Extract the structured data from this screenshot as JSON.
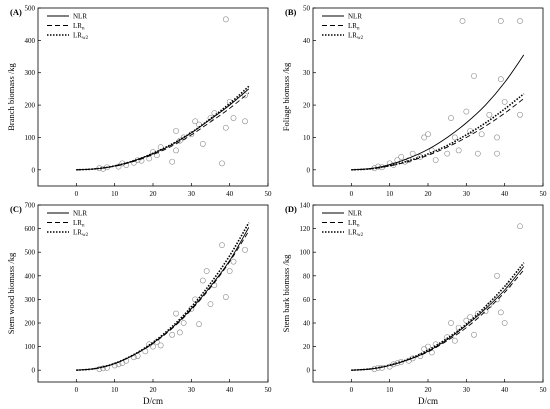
{
  "figure": {
    "xlabel": "D/cm"
  },
  "chart_data": [
    {
      "type": "scatter",
      "panel_label": "(A)",
      "ylabel": "Branch biomass /kg",
      "xlim": [
        -10,
        50
      ],
      "ylim": [
        -50,
        500
      ],
      "xticks": [
        0,
        10,
        20,
        30,
        40,
        50
      ],
      "yticks": [
        0,
        100,
        200,
        300,
        400,
        500
      ],
      "legend": [
        "NLR",
        "LR",
        "LR"
      ],
      "series": [
        {
          "name": "NLR",
          "style": "solid",
          "x": [
            0,
            5,
            10,
            15,
            20,
            25,
            30,
            35,
            40,
            45
          ],
          "y": [
            0,
            3,
            12,
            28,
            50,
            78,
            114,
            156,
            200,
            250
          ]
        },
        {
          "name": "LR",
          "style": "dashed",
          "x": [
            0,
            5,
            10,
            15,
            20,
            25,
            30,
            35,
            40,
            45
          ],
          "y": [
            0,
            3,
            11,
            26,
            47,
            74,
            108,
            148,
            190,
            238
          ]
        },
        {
          "name": "LR",
          "style": "dotted",
          "x": [
            0,
            5,
            10,
            15,
            20,
            25,
            30,
            35,
            40,
            45
          ],
          "y": [
            0,
            3,
            12,
            28,
            51,
            80,
            115,
            158,
            205,
            258
          ]
        }
      ],
      "points": [
        [
          6,
          5
        ],
        [
          7,
          3
        ],
        [
          8,
          8
        ],
        [
          11,
          10
        ],
        [
          12,
          20
        ],
        [
          13,
          15
        ],
        [
          15,
          22
        ],
        [
          16,
          30
        ],
        [
          17,
          28
        ],
        [
          19,
          35
        ],
        [
          20,
          55
        ],
        [
          21,
          45
        ],
        [
          22,
          70
        ],
        [
          25,
          25
        ],
        [
          26,
          60
        ],
        [
          26,
          120
        ],
        [
          27,
          90
        ],
        [
          28,
          100
        ],
        [
          30,
          110
        ],
        [
          31,
          150
        ],
        [
          32,
          140
        ],
        [
          33,
          80
        ],
        [
          35,
          160
        ],
        [
          36,
          175
        ],
        [
          38,
          20
        ],
        [
          39,
          130
        ],
        [
          39,
          465
        ],
        [
          40,
          210
        ],
        [
          41,
          160
        ],
        [
          44,
          230
        ],
        [
          44,
          150
        ]
      ]
    },
    {
      "type": "scatter",
      "panel_label": "(B)",
      "ylabel": "Foliage biomass /kg",
      "xlim": [
        -10,
        50
      ],
      "ylim": [
        -5,
        50
      ],
      "xticks": [
        0,
        10,
        20,
        30,
        40,
        50
      ],
      "yticks": [
        0,
        10,
        20,
        30,
        40,
        50
      ],
      "legend": [
        "NLR",
        "LR",
        "LR"
      ],
      "series": [
        {
          "name": "NLR",
          "style": "solid",
          "x": [
            0,
            5,
            10,
            15,
            20,
            25,
            30,
            35,
            40,
            45
          ],
          "y": [
            0,
            0.4,
            1.6,
            3.6,
            6.3,
            10,
            14.5,
            20,
            27,
            35.5
          ]
        },
        {
          "name": "LR",
          "style": "dashed",
          "x": [
            0,
            5,
            10,
            15,
            20,
            25,
            30,
            35,
            40,
            45
          ],
          "y": [
            0,
            0.3,
            1.2,
            2.6,
            4.5,
            7,
            10,
            13.5,
            17.5,
            22
          ]
        },
        {
          "name": "LR",
          "style": "dotted",
          "x": [
            0,
            5,
            10,
            15,
            20,
            25,
            30,
            35,
            40,
            45
          ],
          "y": [
            0,
            0.3,
            1.3,
            2.8,
            4.9,
            7.5,
            10.8,
            14.5,
            18.8,
            23.5
          ]
        }
      ],
      "points": [
        [
          6,
          0.5
        ],
        [
          7,
          1
        ],
        [
          8,
          0.8
        ],
        [
          10,
          2
        ],
        [
          11,
          1.5
        ],
        [
          12,
          3
        ],
        [
          13,
          4
        ],
        [
          14,
          2.5
        ],
        [
          15,
          3
        ],
        [
          16,
          5
        ],
        [
          18,
          4
        ],
        [
          19,
          10
        ],
        [
          20,
          11
        ],
        [
          21,
          6
        ],
        [
          22,
          3
        ],
        [
          25,
          5
        ],
        [
          26,
          16
        ],
        [
          27,
          10
        ],
        [
          28,
          6
        ],
        [
          29,
          46
        ],
        [
          30,
          18
        ],
        [
          31,
          12
        ],
        [
          32,
          29
        ],
        [
          33,
          5
        ],
        [
          34,
          11
        ],
        [
          36,
          17
        ],
        [
          38,
          5
        ],
        [
          38,
          10
        ],
        [
          39,
          28
        ],
        [
          39,
          46
        ],
        [
          40,
          21
        ],
        [
          44,
          46
        ],
        [
          44,
          17
        ]
      ]
    },
    {
      "type": "scatter",
      "panel_label": "(C)",
      "ylabel": "Stem wood biomass /kg",
      "xlim": [
        -10,
        50
      ],
      "ylim": [
        -50,
        700
      ],
      "xticks": [
        0,
        10,
        20,
        30,
        40,
        50
      ],
      "yticks": [
        0,
        100,
        200,
        300,
        400,
        500,
        600,
        700
      ],
      "legend": [
        "NLR",
        "LR",
        "LR"
      ],
      "series": [
        {
          "name": "NLR",
          "style": "solid",
          "x": [
            0,
            5,
            10,
            15,
            20,
            25,
            30,
            35,
            40,
            45
          ],
          "y": [
            0,
            7,
            28,
            65,
            115,
            180,
            260,
            355,
            465,
            605
          ]
        },
        {
          "name": "LR",
          "style": "dashed",
          "x": [
            0,
            5,
            10,
            15,
            20,
            25,
            30,
            35,
            40,
            45
          ],
          "y": [
            0,
            7,
            28,
            64,
            113,
            177,
            256,
            350,
            460,
            590
          ]
        },
        {
          "name": "LR",
          "style": "dotted",
          "x": [
            0,
            5,
            10,
            15,
            20,
            25,
            30,
            35,
            40,
            45
          ],
          "y": [
            0,
            7,
            29,
            66,
            118,
            185,
            268,
            368,
            485,
            625
          ]
        }
      ],
      "points": [
        [
          6,
          5
        ],
        [
          7,
          8
        ],
        [
          8,
          10
        ],
        [
          10,
          20
        ],
        [
          11,
          25
        ],
        [
          12,
          30
        ],
        [
          13,
          40
        ],
        [
          15,
          55
        ],
        [
          16,
          60
        ],
        [
          18,
          80
        ],
        [
          19,
          110
        ],
        [
          20,
          100
        ],
        [
          21,
          120
        ],
        [
          22,
          105
        ],
        [
          25,
          150
        ],
        [
          26,
          240
        ],
        [
          27,
          160
        ],
        [
          28,
          200
        ],
        [
          30,
          260
        ],
        [
          31,
          300
        ],
        [
          32,
          195
        ],
        [
          33,
          380
        ],
        [
          34,
          420
        ],
        [
          35,
          280
        ],
        [
          36,
          360
        ],
        [
          38,
          530
        ],
        [
          39,
          310
        ],
        [
          40,
          420
        ],
        [
          41,
          460
        ],
        [
          44,
          510
        ]
      ]
    },
    {
      "type": "scatter",
      "panel_label": "(D)",
      "ylabel": "Stem bark biomass /kg",
      "xlim": [
        -10,
        50
      ],
      "ylim": [
        -10,
        140
      ],
      "xticks": [
        0,
        10,
        20,
        30,
        40,
        50
      ],
      "yticks": [
        0,
        20,
        40,
        60,
        80,
        100,
        120,
        140
      ],
      "legend": [
        "NLR",
        "LR",
        "LR"
      ],
      "series": [
        {
          "name": "NLR",
          "style": "solid",
          "x": [
            0,
            5,
            10,
            15,
            20,
            25,
            30,
            35,
            40,
            45
          ],
          "y": [
            0,
            1,
            4,
            9,
            16,
            26,
            38,
            52,
            68,
            88
          ]
        },
        {
          "name": "LR",
          "style": "dashed",
          "x": [
            0,
            5,
            10,
            15,
            20,
            25,
            30,
            35,
            40,
            45
          ],
          "y": [
            0,
            1,
            4,
            9,
            15.5,
            25,
            36,
            50,
            66,
            85
          ]
        },
        {
          "name": "LR",
          "style": "dotted",
          "x": [
            0,
            5,
            10,
            15,
            20,
            25,
            30,
            35,
            40,
            45
          ],
          "y": [
            0,
            1.1,
            4.3,
            9.5,
            17,
            27,
            39,
            54,
            71,
            91
          ]
        }
      ],
      "points": [
        [
          6,
          1
        ],
        [
          7,
          2
        ],
        [
          8,
          2
        ],
        [
          10,
          3
        ],
        [
          11,
          5
        ],
        [
          12,
          6
        ],
        [
          13,
          7
        ],
        [
          15,
          8
        ],
        [
          16,
          10
        ],
        [
          18,
          12
        ],
        [
          19,
          18
        ],
        [
          20,
          20
        ],
        [
          21,
          15
        ],
        [
          22,
          22
        ],
        [
          25,
          28
        ],
        [
          26,
          40
        ],
        [
          27,
          25
        ],
        [
          28,
          36
        ],
        [
          30,
          42
        ],
        [
          31,
          45
        ],
        [
          32,
          30
        ],
        [
          33,
          48
        ],
        [
          35,
          50
        ],
        [
          36,
          55
        ],
        [
          38,
          60
        ],
        [
          38,
          80
        ],
        [
          39,
          49
        ],
        [
          40,
          40
        ],
        [
          41,
          72
        ],
        [
          44,
          122
        ]
      ]
    }
  ]
}
